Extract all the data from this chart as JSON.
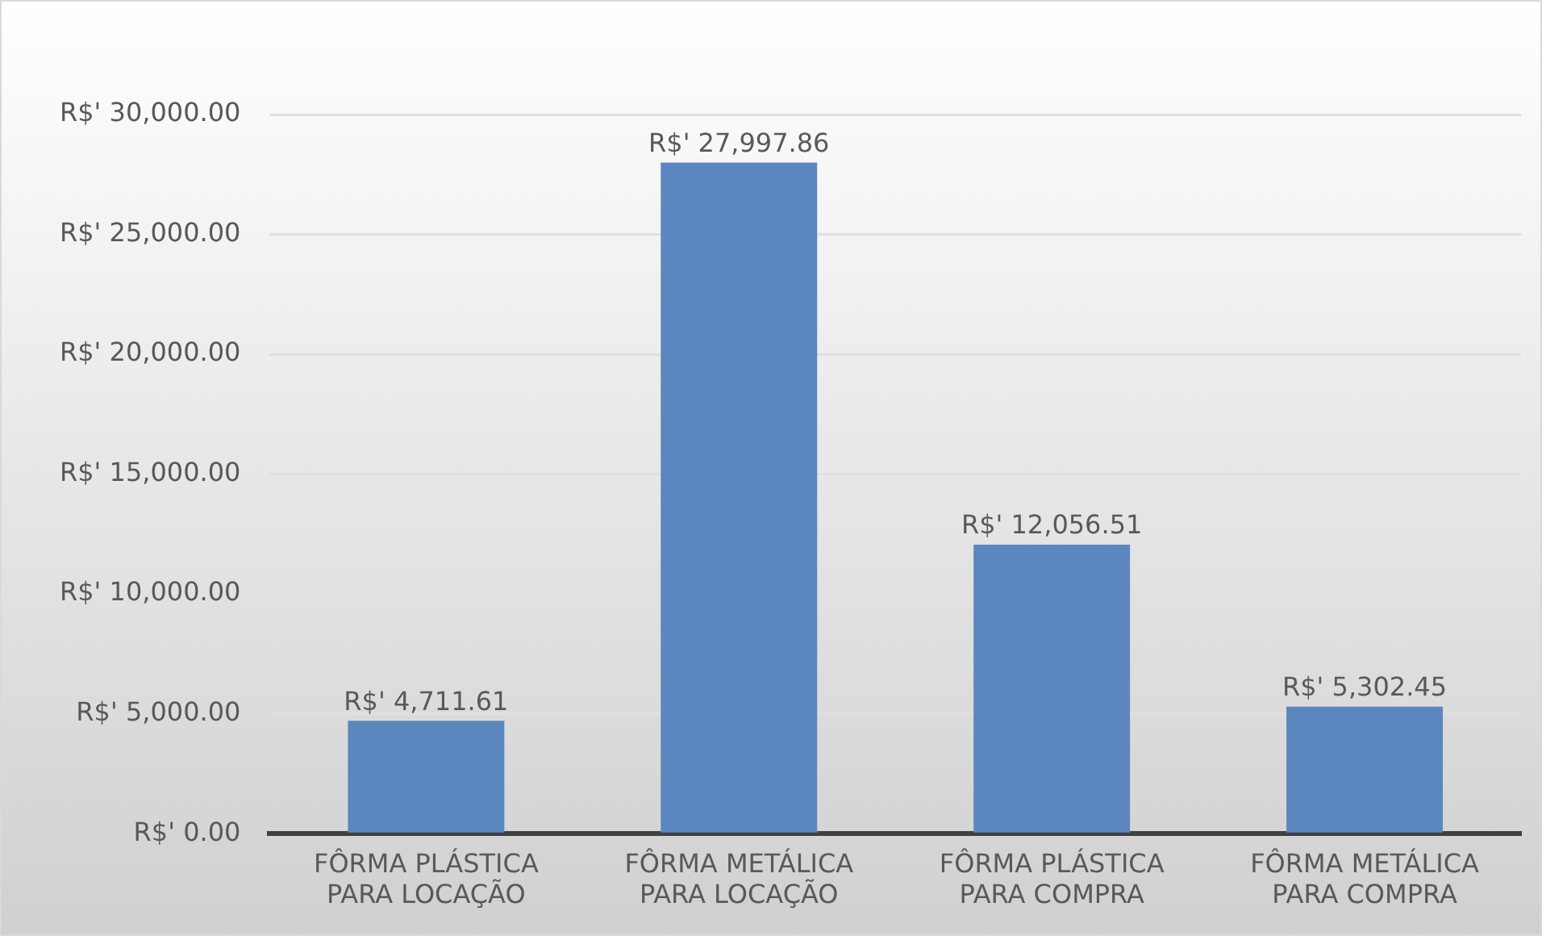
{
  "chart_data": {
    "type": "bar",
    "categories": [
      "FÔRMA PLÁSTICA PARA LOCAÇÃO",
      "FÔRMA METÁLICA PARA LOCAÇÃO",
      "FÔRMA PLÁSTICA PARA COMPRA",
      "FÔRMA METÁLICA PARA COMPRA"
    ],
    "values": [
      4711.61,
      27997.86,
      12056.51,
      5302.45
    ],
    "value_labels": [
      "R$' 4,711.61",
      "R$' 27,997.86",
      "R$' 12,056.51",
      "R$' 5,302.45"
    ],
    "color": "#5b87be",
    "ylim": [
      0,
      30000
    ],
    "yticks": [
      {
        "value": 0,
        "label": "R$' 0.00"
      },
      {
        "value": 5000,
        "label": "R$' 5,000.00"
      },
      {
        "value": 10000,
        "label": "R$' 10,000.00"
      },
      {
        "value": 15000,
        "label": "R$' 15,000.00"
      },
      {
        "value": 20000,
        "label": "R$' 20,000.00"
      },
      {
        "value": 25000,
        "label": "R$' 25,000.00"
      },
      {
        "value": 30000,
        "label": "R$' 30,000.00"
      }
    ],
    "grid": "y",
    "legend": false
  }
}
